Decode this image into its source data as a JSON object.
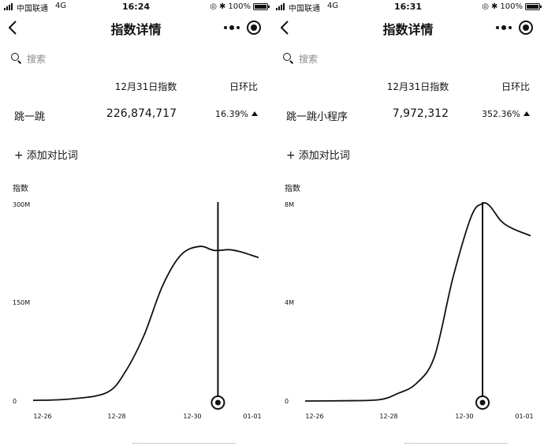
{
  "panels": [
    {
      "status": {
        "carrier": "中国联通",
        "network": "4G",
        "time": "16:24",
        "battery": "100%"
      },
      "nav": {
        "title": "指数详情",
        "back_icon": "chevron-left-icon",
        "more_icon": "more-dots-icon",
        "close_icon": "target-close-icon"
      },
      "search": {
        "placeholder": "搜索",
        "icon": "search-icon"
      },
      "table": {
        "date_header": "12月31日指数",
        "ratio_header": "日环比",
        "row": {
          "term": "跳一跳",
          "value": "226,874,717",
          "ratio": "16.39%",
          "trend": "up"
        }
      },
      "add_compare": {
        "plus": "+",
        "label": "添加对比词"
      },
      "chart_data": {
        "type": "line",
        "ylabel": "指数",
        "ytick_labels": [
          "300M",
          "150M",
          "0"
        ],
        "yticks": [
          300000000,
          150000000,
          0
        ],
        "ylim": [
          0,
          300000000
        ],
        "xtick_labels": [
          "12-26",
          "12-28",
          "12-30",
          "01-01"
        ],
        "xlim": [
          0,
          6.1
        ],
        "series": [
          {
            "x": [
              0,
              1,
              2,
              2.5,
              3,
              3.5,
              4,
              4.5,
              4.9,
              5.3,
              5.6,
              6.1
            ],
            "y": [
              1000000,
              3000000,
              13000000,
              45000000,
              100000000,
              175000000,
              222000000,
              235000000,
              229000000,
              230000000,
              227000000,
              218000000
            ]
          }
        ],
        "cursor": {
          "x": 5.0
        }
      }
    },
    {
      "status": {
        "carrier": "中国联通",
        "network": "4G",
        "time": "16:31",
        "battery": "100%"
      },
      "nav": {
        "title": "指数详情",
        "back_icon": "chevron-left-icon",
        "more_icon": "more-dots-icon",
        "close_icon": "target-close-icon"
      },
      "search": {
        "placeholder": "搜索",
        "icon": "search-icon"
      },
      "table": {
        "date_header": "12月31日指数",
        "ratio_header": "日环比",
        "row": {
          "term": "跳一跳小程序",
          "value": "7,972,312",
          "ratio": "352.36%",
          "trend": "up"
        }
      },
      "add_compare": {
        "plus": "+",
        "label": "添加对比词"
      },
      "chart_data": {
        "type": "line",
        "ylabel": "指数",
        "ytick_labels": [
          "8M",
          "4M",
          "0"
        ],
        "yticks": [
          8000000,
          4000000,
          0
        ],
        "ylim": [
          0,
          8000000
        ],
        "xtick_labels": [
          "12-26",
          "12-28",
          "12-30",
          "01-01"
        ],
        "xlim": [
          0,
          6.1
        ],
        "series": [
          {
            "x": [
              0,
              1,
              2,
              2.5,
              3,
              3.5,
              4,
              4.5,
              4.8,
              5.0,
              5.3,
              5.6,
              6.1
            ],
            "y": [
              0,
              10000,
              50000,
              300000,
              700000,
              1800000,
              5000000,
              7500000,
              8000000,
              7900000,
              7300000,
              7000000,
              6700000
            ]
          }
        ],
        "cursor": {
          "x": 4.8
        }
      }
    }
  ]
}
